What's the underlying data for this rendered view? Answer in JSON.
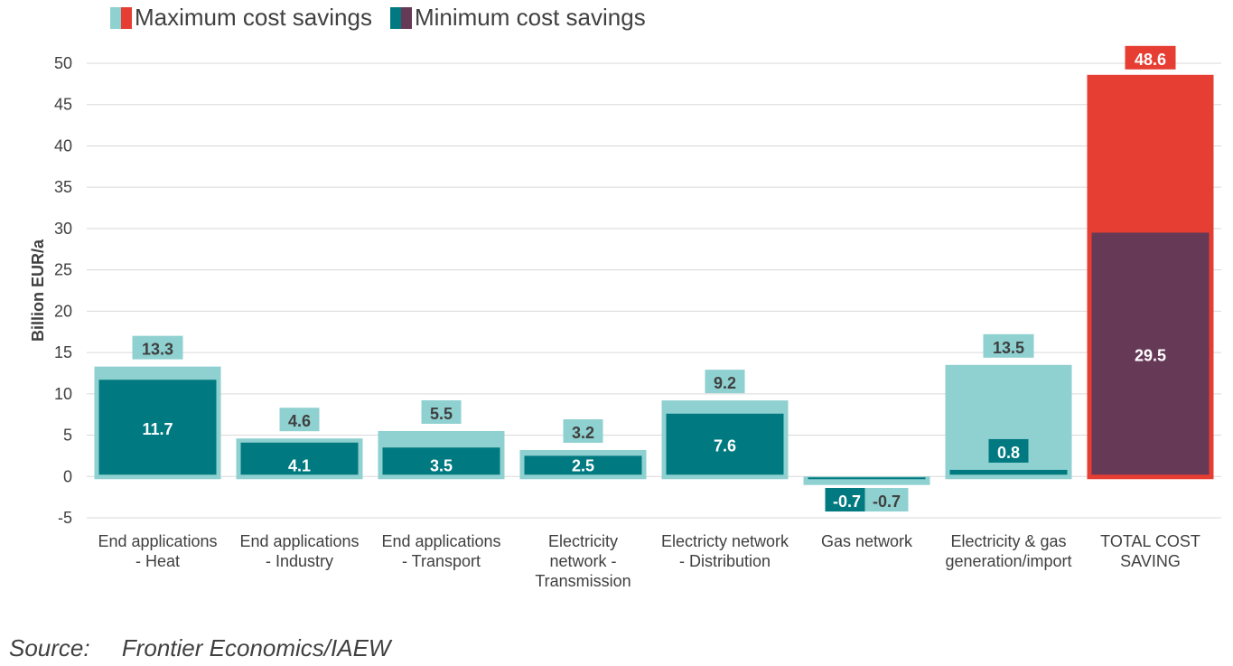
{
  "legend": {
    "max_label": "Maximum cost savings",
    "min_label": "Minimum cost savings"
  },
  "source": {
    "label": "Source:",
    "text": "Frontier Economics/IAEW"
  },
  "colors": {
    "max_bar": "#8fd0d0",
    "min_bar": "#007a80",
    "total_max": "#e63e33",
    "total_min": "#663a57",
    "grid": "#d9d9d9",
    "text": "#404040"
  },
  "chart_data": {
    "type": "bar",
    "ylabel": "Billion EUR/a",
    "ylim": [
      -5,
      50
    ],
    "yticks": [
      -5,
      0,
      5,
      10,
      15,
      20,
      25,
      30,
      35,
      40,
      45,
      50
    ],
    "grid": true,
    "legend_position": "top-left",
    "categories": [
      [
        "End applications",
        "- Heat"
      ],
      [
        "End applications",
        "- Industry"
      ],
      [
        "End applications",
        "- Transport"
      ],
      [
        "Electricity",
        "network -",
        "Transmission"
      ],
      [
        "Electricty network",
        "- Distribution"
      ],
      [
        "Gas network"
      ],
      [
        "Electricity & gas",
        "generation/import"
      ],
      [
        "TOTAL COST",
        "SAVING"
      ]
    ],
    "series": [
      {
        "name": "Maximum cost savings",
        "values": [
          13.3,
          4.6,
          5.5,
          3.2,
          9.2,
          -0.7,
          13.5,
          48.6
        ],
        "labels": [
          "13.3",
          "4.6",
          "5.5",
          "3.2",
          "9.2",
          "-0.7",
          "13.5",
          "48.6"
        ]
      },
      {
        "name": "Minimum cost savings",
        "values": [
          11.7,
          4.1,
          3.5,
          2.5,
          7.6,
          -0.7,
          0.8,
          29.5
        ],
        "labels": [
          "11.7",
          "4.1",
          "3.5",
          "2.5",
          "7.6",
          "-0.7",
          "0.8",
          "29.5"
        ]
      }
    ]
  }
}
